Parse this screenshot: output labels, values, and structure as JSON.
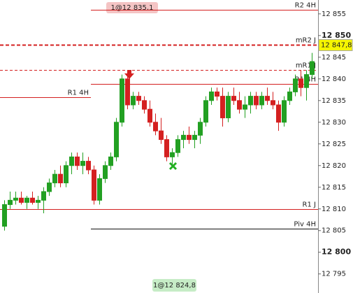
{
  "chart_data": {
    "type": "candlestick",
    "ylim": [
      12790.6,
      12858.2
    ],
    "yticks": [
      {
        "value": 12855,
        "label": "12 855"
      },
      {
        "value": 12850,
        "label": "12 850"
      },
      {
        "value": 12845,
        "label": "12 845"
      },
      {
        "value": 12840,
        "label": "12 840"
      },
      {
        "value": 12835,
        "label": "12 835"
      },
      {
        "value": 12830,
        "label": "12 830"
      },
      {
        "value": 12825,
        "label": "12 825"
      },
      {
        "value": 12820,
        "label": "12 820"
      },
      {
        "value": 12815,
        "label": "12 815"
      },
      {
        "value": 12810,
        "label": "12 810"
      },
      {
        "value": 12805,
        "label": "12 805"
      },
      {
        "value": 12800,
        "label": "12 800"
      },
      {
        "value": 12795,
        "label": "12 795"
      }
    ],
    "up_color": "#22a022",
    "down_color": "#d42020",
    "open": [
      12806,
      12811,
      12812,
      12812.5,
      12811.5,
      12812.5,
      12811.5,
      12812,
      12814,
      12816,
      12818,
      12816,
      12820,
      12822,
      12820,
      12821,
      12819,
      12812,
      12817,
      12820,
      12822,
      12830,
      12840,
      12834,
      12836,
      12835,
      12833,
      12830,
      12828,
      12826,
      12822,
      12823,
      12826,
      12827,
      12826,
      12827,
      12830,
      12835,
      12837,
      12836,
      12831,
      12836,
      12835,
      12833,
      12834,
      12836,
      12834,
      12836,
      12835,
      12834,
      12830,
      12835,
      12837,
      12840,
      12838,
      12841
    ],
    "high": [
      12812,
      12814,
      12814,
      12814,
      12813,
      12814,
      12813,
      12815,
      12817,
      12819,
      12820,
      12821,
      12823,
      12823,
      12823,
      12822,
      12820,
      12818,
      12821,
      12823,
      12831,
      12841,
      12841,
      12837,
      12837,
      12836,
      12835,
      12832,
      12831,
      12827,
      12824,
      12827,
      12828,
      12829,
      12828,
      12831,
      12836,
      12838,
      12838,
      12838,
      12837,
      12838,
      12837,
      12836,
      12837,
      12837,
      12837,
      12838,
      12837,
      12835,
      12836,
      12838,
      12841,
      12842,
      12842,
      12846
    ],
    "low": [
      12805,
      12810,
      12811,
      12811,
      12810,
      12811,
      12810,
      12809,
      12813,
      12815,
      12815,
      12815,
      12818,
      12819,
      12818,
      12818,
      12811,
      12811,
      12816,
      12819,
      12821,
      12829,
      12833,
      12833,
      12834,
      12832,
      12829,
      12827,
      12825,
      12821,
      12820,
      12822,
      12824,
      12825,
      12824,
      12825,
      12829,
      12834,
      12835,
      12829,
      12830,
      12834,
      12832,
      12831,
      12832,
      12833,
      12833,
      12834,
      12833,
      12828,
      12829,
      12834,
      12836,
      12836,
      12835,
      12840
    ],
    "close": [
      12811,
      12812,
      12812.5,
      12811.5,
      12812.5,
      12811.5,
      12812,
      12814,
      12816,
      12818,
      12816,
      12820,
      12822,
      12820,
      12821,
      12819,
      12812,
      12817,
      12820,
      12822,
      12830,
      12840,
      12834,
      12836,
      12835,
      12833,
      12830,
      12828,
      12826,
      12822,
      12823,
      12826,
      12827,
      12826,
      12827,
      12830,
      12835,
      12837,
      12836,
      12831,
      12836,
      12835,
      12833,
      12834,
      12836,
      12834,
      12836,
      12835,
      12834,
      12830,
      12835,
      12837,
      12840,
      12838,
      12841,
      12844
    ],
    "levels": [
      {
        "name": "R2 4H",
        "value": 12856,
        "color": "#d42020",
        "style": "solid"
      },
      {
        "name": "mR2 J",
        "value": 12847.8,
        "value_label": "12 847,8",
        "color": "#d42020",
        "style": "dashed-bold"
      },
      {
        "name": "mR1 J",
        "value": 12842.1,
        "color": "#d42020",
        "style": "dashed"
      },
      {
        "name": "R1 4H",
        "value": 12838.8,
        "color": "#d42020",
        "style": "solid"
      },
      {
        "name": "R1 4H",
        "value": 12835.8,
        "color": "#d42020",
        "style": "solid"
      },
      {
        "name": "R1 J",
        "value": 12809.9,
        "color": "#d42020",
        "style": "solid"
      },
      {
        "name": "Piv 4H",
        "value": 12805.4,
        "color": "#111111",
        "style": "solid"
      }
    ],
    "annotations": [
      "1@12 835,1",
      "1@12 824,8"
    ]
  }
}
